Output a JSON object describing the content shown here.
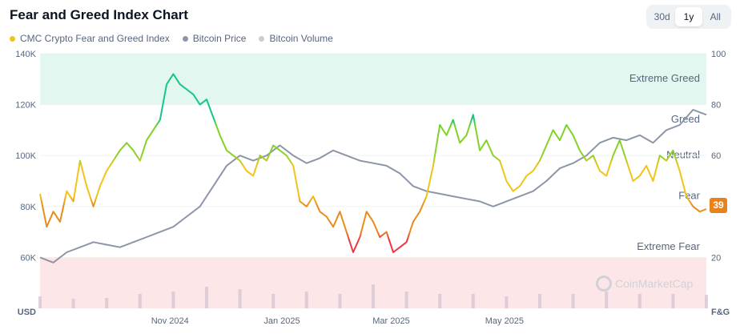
{
  "title": "Fear and Greed Index Chart",
  "range_buttons": [
    "30d",
    "1y",
    "All"
  ],
  "active_range": "1y",
  "legend": [
    {
      "label": "CMC Crypto Fear and Greed Index",
      "color": "#f0c419"
    },
    {
      "label": "Bitcoin Price",
      "color": "#8d96a8"
    },
    {
      "label": "Bitcoin Volume",
      "color": "#c9cdd6"
    }
  ],
  "watermark": "CoinMarketCap",
  "current_value": "39",
  "chart_data": {
    "type": "line",
    "left_axis": {
      "label": "USD",
      "ticks": [
        "140K",
        "120K",
        "100K",
        "80K",
        "60K"
      ],
      "values": [
        140000,
        120000,
        100000,
        80000,
        60000
      ],
      "range": [
        60000,
        140000
      ]
    },
    "right_axis": {
      "label": "F&G",
      "ticks": [
        "100",
        "80",
        "60",
        "40",
        "20"
      ],
      "values": [
        100,
        80,
        60,
        40,
        20
      ],
      "range": [
        20,
        100
      ]
    },
    "x_axis": {
      "ticks": [
        "Nov 2024",
        "Jan 2025",
        "Mar 2025",
        "May 2025"
      ],
      "tick_positions": [
        0.195,
        0.363,
        0.527,
        0.697
      ]
    },
    "zones": [
      {
        "label": "Extreme Greed",
        "range": [
          80,
          100
        ],
        "color": "#e2f7ef"
      },
      {
        "label": "Greed",
        "range": [
          60,
          80
        ],
        "color": "none"
      },
      {
        "label": "Neutral",
        "range": [
          40,
          60
        ],
        "color": "none"
      },
      {
        "label": "Fear",
        "range": [
          20,
          40
        ],
        "color": "none"
      },
      {
        "label": "Extreme Fear",
        "range": [
          0,
          20
        ],
        "color": "#fde6e7"
      }
    ],
    "series": [
      {
        "name": "Bitcoin Price",
        "color": "#8d96a8",
        "x": [
          0,
          0.02,
          0.04,
          0.06,
          0.08,
          0.1,
          0.12,
          0.14,
          0.16,
          0.18,
          0.2,
          0.22,
          0.24,
          0.26,
          0.28,
          0.3,
          0.32,
          0.34,
          0.36,
          0.38,
          0.4,
          0.42,
          0.44,
          0.46,
          0.48,
          0.5,
          0.52,
          0.54,
          0.56,
          0.58,
          0.6,
          0.62,
          0.64,
          0.66,
          0.68,
          0.7,
          0.72,
          0.74,
          0.76,
          0.78,
          0.8,
          0.82,
          0.84,
          0.86,
          0.88,
          0.9,
          0.92,
          0.94,
          0.96,
          0.98,
          1.0
        ],
        "values": [
          60000,
          58000,
          62000,
          64000,
          66000,
          65000,
          64000,
          66000,
          68000,
          70000,
          72000,
          76000,
          80000,
          88000,
          96000,
          100000,
          98000,
          100000,
          104000,
          100000,
          97000,
          99000,
          102000,
          100000,
          98000,
          97000,
          96000,
          93000,
          88000,
          86000,
          85000,
          84000,
          83000,
          82000,
          80000,
          82000,
          84000,
          86000,
          90000,
          95000,
          97000,
          100000,
          105000,
          107000,
          106000,
          108000,
          105000,
          110000,
          112000,
          118000,
          116000
        ]
      },
      {
        "name": "CMC Crypto Fear and Greed Index",
        "x": [
          0,
          0.01,
          0.02,
          0.03,
          0.04,
          0.05,
          0.06,
          0.07,
          0.08,
          0.09,
          0.1,
          0.11,
          0.12,
          0.13,
          0.14,
          0.15,
          0.16,
          0.17,
          0.18,
          0.19,
          0.2,
          0.21,
          0.22,
          0.23,
          0.24,
          0.25,
          0.26,
          0.27,
          0.28,
          0.29,
          0.3,
          0.31,
          0.32,
          0.33,
          0.34,
          0.35,
          0.36,
          0.37,
          0.38,
          0.39,
          0.4,
          0.41,
          0.42,
          0.43,
          0.44,
          0.45,
          0.46,
          0.47,
          0.48,
          0.49,
          0.5,
          0.51,
          0.52,
          0.53,
          0.54,
          0.55,
          0.56,
          0.57,
          0.58,
          0.59,
          0.6,
          0.61,
          0.62,
          0.63,
          0.64,
          0.65,
          0.66,
          0.67,
          0.68,
          0.69,
          0.7,
          0.71,
          0.72,
          0.73,
          0.74,
          0.75,
          0.76,
          0.77,
          0.78,
          0.79,
          0.8,
          0.81,
          0.82,
          0.83,
          0.84,
          0.85,
          0.86,
          0.87,
          0.88,
          0.89,
          0.9,
          0.91,
          0.92,
          0.93,
          0.94,
          0.95,
          0.96,
          0.97,
          0.98,
          0.99,
          1.0
        ],
        "values": [
          45,
          32,
          38,
          34,
          46,
          42,
          58,
          48,
          40,
          48,
          54,
          58,
          62,
          65,
          62,
          58,
          66,
          70,
          74,
          88,
          92,
          88,
          86,
          84,
          80,
          82,
          75,
          68,
          62,
          60,
          58,
          54,
          52,
          60,
          58,
          64,
          62,
          60,
          56,
          42,
          40,
          44,
          38,
          36,
          32,
          38,
          30,
          22,
          28,
          38,
          34,
          28,
          30,
          22,
          24,
          26,
          34,
          38,
          44,
          56,
          72,
          68,
          74,
          65,
          68,
          76,
          62,
          66,
          60,
          58,
          50,
          46,
          48,
          52,
          54,
          58,
          64,
          70,
          66,
          72,
          68,
          62,
          58,
          60,
          54,
          52,
          60,
          66,
          58,
          50,
          52,
          56,
          50,
          60,
          58,
          62,
          54,
          44,
          40,
          38,
          39
        ]
      },
      {
        "name": "Bitcoin Volume",
        "color": "#c9cdd6",
        "x": [
          0,
          0.05,
          0.1,
          0.15,
          0.2,
          0.25,
          0.3,
          0.35,
          0.4,
          0.45,
          0.5,
          0.55,
          0.6,
          0.65,
          0.7,
          0.75,
          0.8,
          0.85,
          0.9,
          0.95,
          1.0
        ],
        "values": [
          0.25,
          0.2,
          0.22,
          0.3,
          0.35,
          0.45,
          0.4,
          0.3,
          0.35,
          0.3,
          0.5,
          0.35,
          0.3,
          0.3,
          0.25,
          0.3,
          0.3,
          0.35,
          0.3,
          0.3,
          0.28
        ]
      }
    ]
  }
}
